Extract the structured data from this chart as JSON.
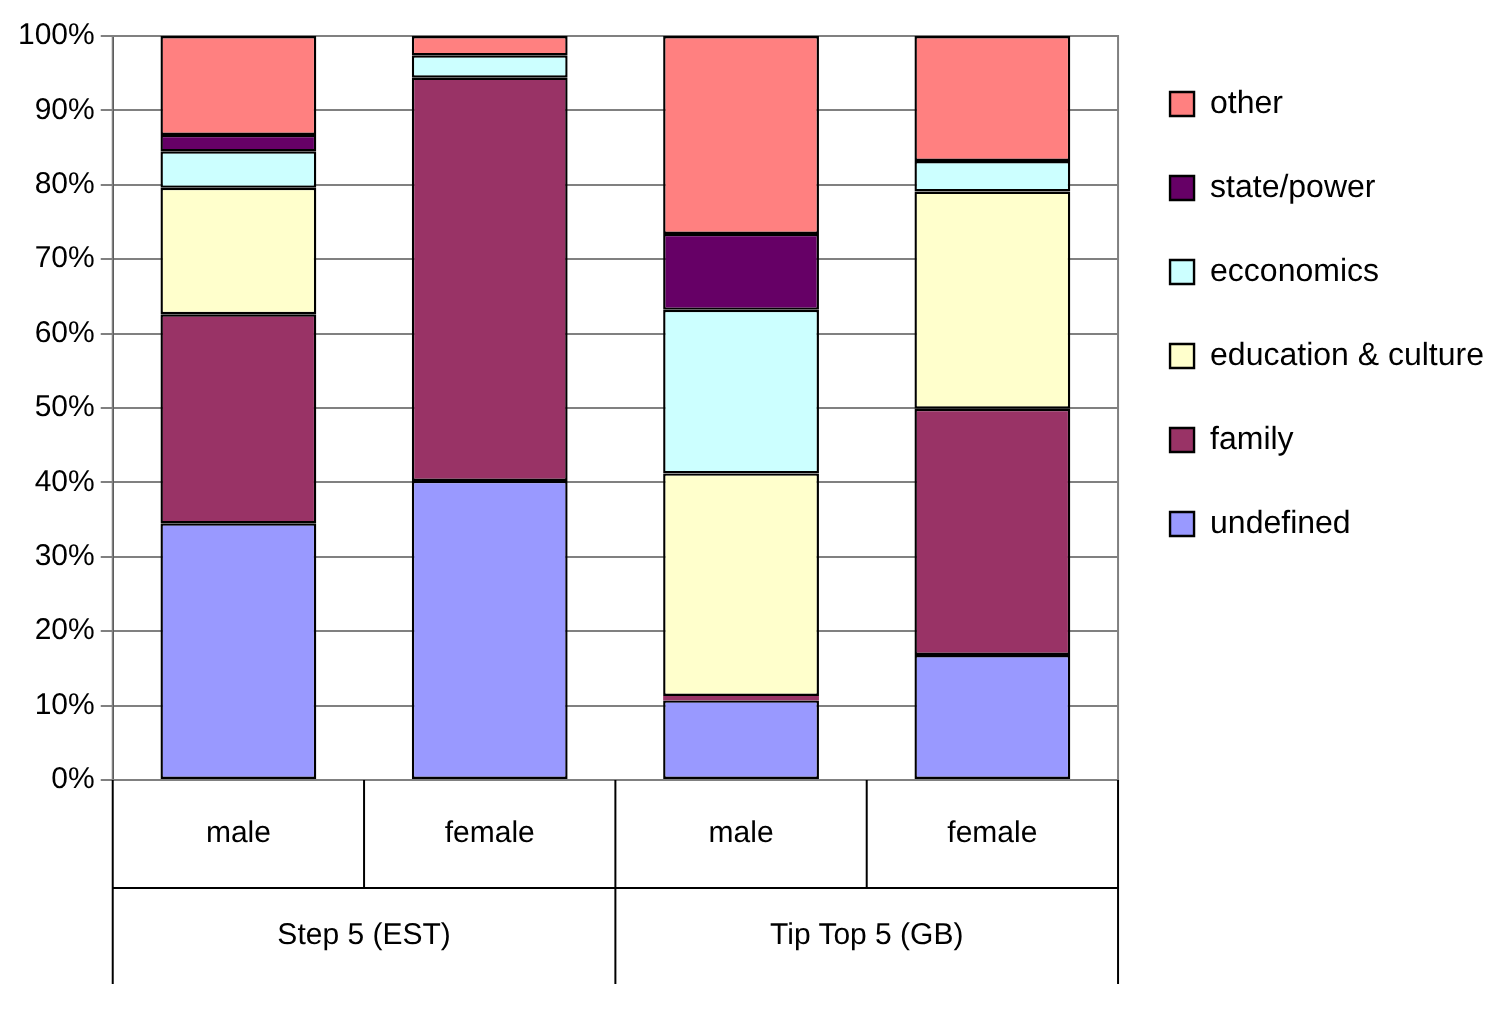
{
  "chart_data": {
    "type": "bar",
    "stacked": true,
    "categories": [
      "male",
      "female",
      "male",
      "female"
    ],
    "series": [
      {
        "name": "undefined",
        "color": "#9999ff",
        "values": [
          34.5,
          40.2,
          10.7,
          16.8
        ]
      },
      {
        "name": "family",
        "color": "#993366",
        "values": [
          28.1,
          54.2,
          0.6,
          33.1
        ]
      },
      {
        "name": "education & culture",
        "color": "#ffffcc",
        "values": [
          17.0,
          0,
          29.9,
          29.2
        ]
      },
      {
        "name": "ecconomics",
        "color": "#ccffff",
        "values": [
          4.9,
          3.0,
          22.0,
          4.1
        ]
      },
      {
        "name": "state/power",
        "color": "#660066",
        "values": [
          2.2,
          0,
          10.2,
          0
        ]
      },
      {
        "name": "other",
        "color": "#ff8080",
        "values": [
          13.3,
          2.6,
          26.6,
          16.8
        ]
      }
    ],
    "ylim": [
      0,
      100
    ],
    "yticks": [
      {
        "value": 0,
        "label": "0%"
      },
      {
        "value": 10,
        "label": "10%"
      },
      {
        "value": 20,
        "label": "20%"
      },
      {
        "value": 30,
        "label": "30%"
      },
      {
        "value": 40,
        "label": "40%"
      },
      {
        "value": 50,
        "label": "50%"
      },
      {
        "value": 60,
        "label": "60%"
      },
      {
        "value": 70,
        "label": "70%"
      },
      {
        "value": 80,
        "label": "80%"
      },
      {
        "value": 90,
        "label": "90%"
      },
      {
        "value": 100,
        "label": "100%"
      }
    ],
    "annotations": [
      "Step 5 (EST)",
      "Tip Top 5 (GB)"
    ],
    "grid": "y",
    "legend": "right"
  }
}
